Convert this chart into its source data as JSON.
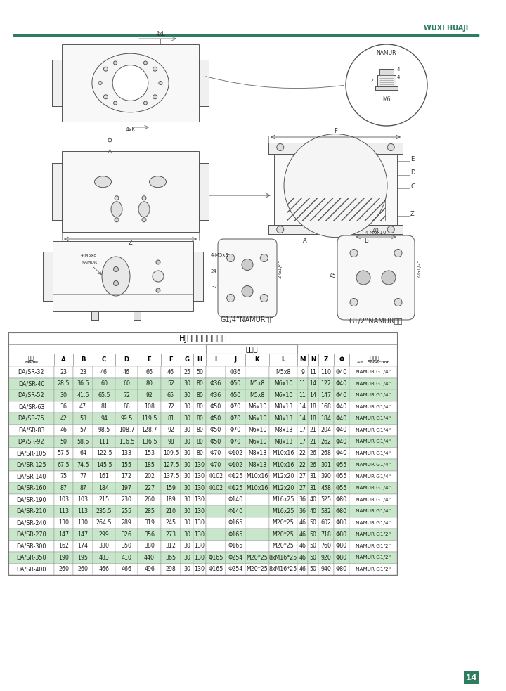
{
  "title": "HJ执行器安装尺寸表",
  "header_line": "WUXI HUAJI",
  "page_number": "14",
  "rows": [
    [
      "DA/SR-32",
      "23",
      "23",
      "46",
      "46",
      "66",
      "46",
      "25",
      "50",
      "",
      "Φ36",
      "",
      "M5x8",
      "9",
      "11",
      "110",
      "Φ40",
      "NAMUR G1/4\""
    ],
    [
      "DA/SR-40",
      "28.5",
      "36.5",
      "60",
      "60",
      "80",
      "52",
      "30",
      "80",
      "Φ36",
      "Φ50",
      "M5x8",
      "M6x10",
      "11",
      "14",
      "122",
      "Φ40",
      "NAMUR G1/4\""
    ],
    [
      "DA/SR-52",
      "30",
      "41.5",
      "65.5",
      "72",
      "92",
      "65",
      "30",
      "80",
      "Φ36",
      "Φ50",
      "M5x8",
      "M6x10",
      "11",
      "14",
      "147",
      "Φ40",
      "NAMUR G1/4\""
    ],
    [
      "DA/SR-63",
      "36",
      "47",
      "81",
      "88",
      "108",
      "72",
      "30",
      "80",
      "Φ50",
      "Φ70",
      "M6x10",
      "M8x13",
      "14",
      "18",
      "168",
      "Φ40",
      "NAMUR G1/4\""
    ],
    [
      "DA/SR-75",
      "42",
      "53",
      "94",
      "99.5",
      "119.5",
      "81",
      "30",
      "80",
      "Φ50",
      "Φ70",
      "M6x10",
      "M8x13",
      "14",
      "18",
      "184",
      "Φ40",
      "NAMUR G1/4\""
    ],
    [
      "DA/SR-83",
      "46",
      "57",
      "98.5",
      "108.7",
      "128.7",
      "92",
      "30",
      "80",
      "Φ50",
      "Φ70",
      "M6x10",
      "M8x13",
      "17",
      "21",
      "204",
      "Φ40",
      "NAMUR G1/4\""
    ],
    [
      "DA/SR-92",
      "50",
      "58.5",
      "111",
      "116.5",
      "136.5",
      "98",
      "30",
      "80",
      "Φ50",
      "Φ70",
      "M6x10",
      "M8x13",
      "17",
      "21",
      "262",
      "Φ40",
      "NAMUR G1/4\""
    ],
    [
      "DA/SR-105",
      "57.5",
      "64",
      "122.5",
      "133",
      "153",
      "109.5",
      "30",
      "80",
      "Φ70",
      "Φ102",
      "M8x13",
      "M10x16",
      "22",
      "26",
      "268",
      "Φ40",
      "NAMUR G1/4\""
    ],
    [
      "DA/SR-125",
      "67.5",
      "74.5",
      "145.5",
      "155",
      "185",
      "127.5",
      "30",
      "130",
      "Φ70",
      "Φ102",
      "M8x13",
      "M10x16",
      "22",
      "26",
      "301",
      "Φ55",
      "NAMUR G1/4\""
    ],
    [
      "DA/SR-140",
      "75",
      "77",
      "161",
      "172",
      "202",
      "137.5",
      "30",
      "130",
      "Φ102",
      "Φ125",
      "M10x16",
      "M12x20",
      "27",
      "31",
      "390",
      "Φ55",
      "NAMUR G1/4\""
    ],
    [
      "DA/SR-160",
      "87",
      "87",
      "184",
      "197",
      "227",
      "159",
      "30",
      "130",
      "Φ102",
      "Φ125",
      "M10x16",
      "M12x20",
      "27",
      "31",
      "458",
      "Φ55",
      "NAMUR G1/4\""
    ],
    [
      "DA/SR-190",
      "103",
      "103",
      "215",
      "230",
      "260",
      "189",
      "30",
      "130",
      "",
      "Φ140",
      "",
      "M16x25",
      "36",
      "40",
      "525",
      "Φ80",
      "NAMUR G1/4\""
    ],
    [
      "DA/SR-210",
      "113",
      "113",
      "235.5",
      "255",
      "285",
      "210",
      "30",
      "130",
      "",
      "Φ140",
      "",
      "M16x25",
      "36",
      "40",
      "532",
      "Φ80",
      "NAMUR G1/4\""
    ],
    [
      "DA/SR-240",
      "130",
      "130",
      "264.5",
      "289",
      "319",
      "245",
      "30",
      "130",
      "",
      "Φ165",
      "",
      "M20*25",
      "46",
      "50",
      "602",
      "Φ80",
      "NAMUR G1/4\""
    ],
    [
      "DA/SR-270",
      "147",
      "147",
      "299",
      "326",
      "356",
      "273",
      "30",
      "130",
      "",
      "Φ165",
      "",
      "M20*25",
      "46",
      "50",
      "718",
      "Φ80",
      "NAMUR G1/2\""
    ],
    [
      "DA/SR-300",
      "162",
      "174",
      "330",
      "350",
      "380",
      "312",
      "30",
      "130",
      "",
      "Φ165",
      "",
      "M20*25",
      "46",
      "50",
      "760",
      "Φ80",
      "NAMUR G1/2\""
    ],
    [
      "DA/SR-350",
      "190",
      "195",
      "483",
      "410",
      "440",
      "365",
      "30",
      "130",
      "Φ165",
      "Φ254",
      "M20*25",
      "8xM16*25",
      "46",
      "50",
      "920",
      "Φ80",
      "NAMUR G1/2\""
    ],
    [
      "DA/SR-400",
      "260",
      "260",
      "466",
      "466",
      "496",
      "298",
      "30",
      "130",
      "Φ165",
      "Φ254",
      "M20*25",
      "8xM16*25",
      "46",
      "50",
      "940",
      "Φ80",
      "NAMUR G1/2\""
    ]
  ],
  "highlight_rows": [
    1,
    2,
    4,
    6,
    8,
    10,
    12,
    14,
    16
  ],
  "highlight_bg": "#c8e6c9",
  "white_bg": "#ffffff",
  "border_color": "#999999",
  "green_line_color": "#2e7d5e",
  "green_bar_color": "#2e7d5e",
  "lc": "#555555",
  "lw": 0.7
}
